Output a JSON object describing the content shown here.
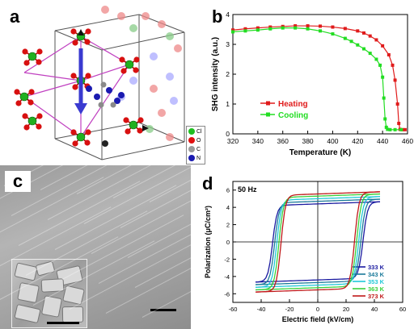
{
  "panels": {
    "a": {
      "label": "a"
    },
    "b": {
      "label": "b"
    },
    "c": {
      "label": "c"
    },
    "d": {
      "label": "d"
    }
  },
  "structure_legend": [
    {
      "symbol": "Cl",
      "color": "#1fbf1f"
    },
    {
      "symbol": "O",
      "color": "#e01010"
    },
    {
      "symbol": "C",
      "color": "#9a9a9a"
    },
    {
      "symbol": "N",
      "color": "#1a1ab0"
    }
  ],
  "chart_data": [
    {
      "id": "shg",
      "type": "line",
      "xlabel": "Temperature (K)",
      "ylabel": "SHG intensity (a.u.)",
      "xlim": [
        320,
        460
      ],
      "ylim": [
        0,
        4
      ],
      "xticks": [
        320,
        340,
        360,
        380,
        400,
        420,
        440,
        460
      ],
      "yticks": [
        0,
        1,
        2,
        3,
        4
      ],
      "legend_position": "center-left",
      "series": [
        {
          "name": "Heating",
          "color": "#e01b1b",
          "x": [
            320,
            330,
            340,
            350,
            360,
            370,
            380,
            390,
            400,
            410,
            420,
            425,
            430,
            435,
            440,
            445,
            448,
            450,
            452,
            453,
            454,
            456,
            458
          ],
          "y": [
            3.48,
            3.52,
            3.55,
            3.58,
            3.6,
            3.62,
            3.62,
            3.61,
            3.58,
            3.53,
            3.45,
            3.38,
            3.28,
            3.15,
            2.95,
            2.65,
            2.3,
            1.8,
            1.0,
            0.35,
            0.15,
            0.14,
            0.14
          ]
        },
        {
          "name": "Cooling",
          "color": "#22dd22",
          "x": [
            320,
            330,
            340,
            350,
            360,
            370,
            380,
            390,
            400,
            410,
            415,
            420,
            425,
            430,
            435,
            438,
            440,
            441,
            442,
            443,
            444,
            446,
            450,
            455
          ],
          "y": [
            3.42,
            3.45,
            3.48,
            3.52,
            3.55,
            3.55,
            3.52,
            3.45,
            3.35,
            3.2,
            3.1,
            2.98,
            2.85,
            2.7,
            2.5,
            2.3,
            1.9,
            1.2,
            0.5,
            0.22,
            0.15,
            0.14,
            0.14,
            0.14
          ]
        }
      ]
    },
    {
      "id": "pe",
      "type": "line",
      "annotation": "50 Hz",
      "xlabel": "Electric field (kV/cm)",
      "ylabel": "Polarization (μC/cm²)",
      "xlim": [
        -60,
        60
      ],
      "ylim": [
        -7,
        7
      ],
      "xticks": [
        -60,
        -40,
        -20,
        0,
        20,
        40,
        60
      ],
      "yticks": [
        -6,
        -4,
        -2,
        0,
        2,
        4,
        6
      ],
      "legend_position": "bottom-right",
      "series": [
        {
          "name": "333 K",
          "color": "#1a1aa0",
          "Ec": 32,
          "Pr": 4.1,
          "Ps": 4.4,
          "Emax": 44
        },
        {
          "name": "343 K",
          "color": "#1a7a9a",
          "Ec": 30.5,
          "Pr": 4.4,
          "Ps": 4.7,
          "Emax": 44
        },
        {
          "name": "353 K",
          "color": "#20c8d8",
          "Ec": 29,
          "Pr": 4.7,
          "Ps": 5.0,
          "Emax": 44
        },
        {
          "name": "363 K",
          "color": "#3ad03a",
          "Ec": 27.5,
          "Pr": 5.0,
          "Ps": 5.3,
          "Emax": 44
        },
        {
          "name": "373 K",
          "color": "#c01818",
          "Ec": 26,
          "Pr": 5.3,
          "Ps": 5.55,
          "Emax": 44
        }
      ]
    }
  ]
}
